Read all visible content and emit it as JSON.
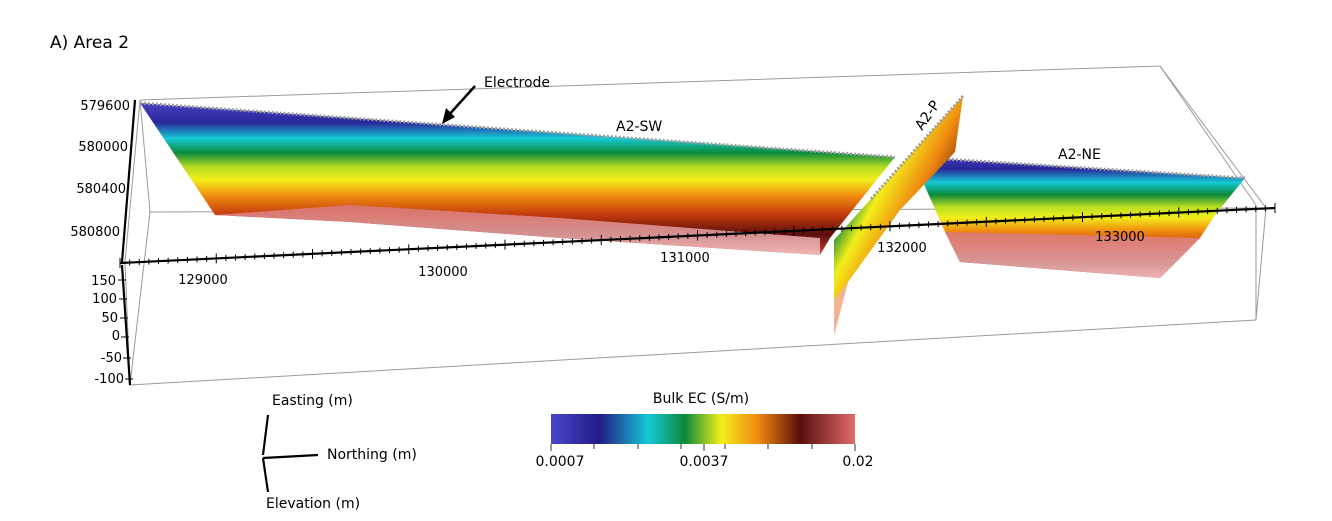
{
  "panel_title": "A) Area 2",
  "annotations": {
    "electrode_label": "Electrode",
    "profiles": [
      "A2-SW",
      "A2-P",
      "A2-NE"
    ]
  },
  "axes": {
    "northing_ticks": [
      "579600",
      "580000",
      "580400",
      "580800"
    ],
    "easting_ticks": [
      "129000",
      "130000",
      "131000",
      "132000",
      "133000"
    ],
    "elevation_ticks": [
      "150",
      "100",
      "50",
      "0",
      "-50",
      "-100"
    ]
  },
  "orientation": {
    "easting_label": "Easting (m)",
    "northing_label": "Northing (m)",
    "elevation_label": "Elevation (m)"
  },
  "colorbar": {
    "title": "Bulk EC (S/m)",
    "tick_labels": [
      "0.0007",
      "0.0037",
      "0.02"
    ],
    "colors": [
      "#4a47c9",
      "#231a86",
      "#15c9d6",
      "#0a8a3a",
      "#f2ee1a",
      "#f08a10",
      "#5a0e0c",
      "#e16b6b"
    ]
  }
}
